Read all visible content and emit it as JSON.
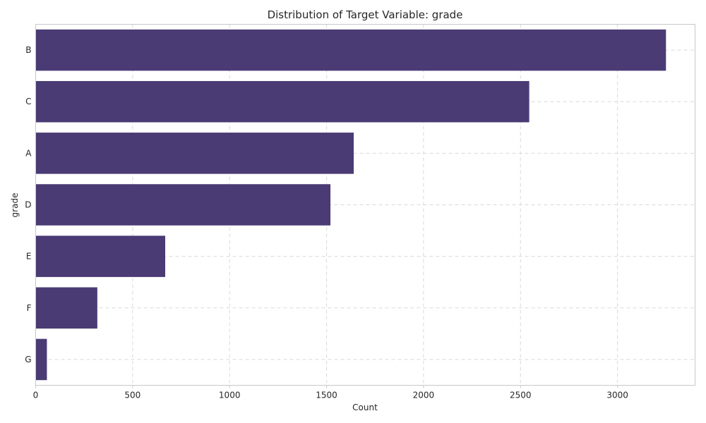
{
  "chart_data": {
    "type": "bar",
    "orientation": "horizontal",
    "title": "Distribution of Target Variable: grade",
    "xlabel": "Count",
    "ylabel": "grade",
    "categories": [
      "B",
      "C",
      "A",
      "D",
      "E",
      "F",
      "G"
    ],
    "values": [
      3250,
      2545,
      1640,
      1520,
      668,
      318,
      58
    ],
    "xlim": [
      0,
      3400
    ],
    "xticks": [
      0,
      500,
      1000,
      1500,
      2000,
      2500,
      3000
    ],
    "grid": true,
    "bar_color": "#4a3b74"
  }
}
